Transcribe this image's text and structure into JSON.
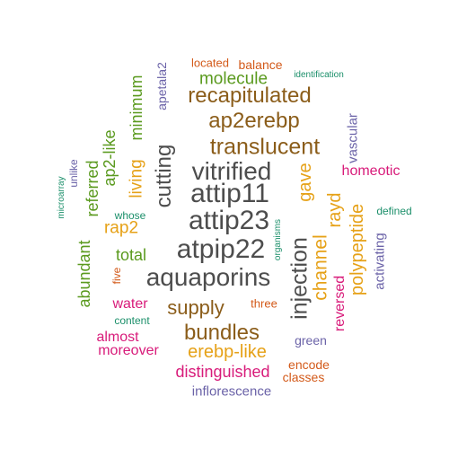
{
  "words": [
    {
      "text": "aquaporins",
      "color": "#4d4d4d"
    },
    {
      "text": "attip23",
      "color": "#4d4d4d"
    },
    {
      "text": "atpip22",
      "color": "#4d4d4d"
    },
    {
      "text": "attip11",
      "color": "#4d4d4d"
    },
    {
      "text": "vitrified",
      "color": "#4d4d4d"
    },
    {
      "text": "translucent",
      "color": "#8b5d1a"
    },
    {
      "text": "injection",
      "color": "#4d4d4d"
    },
    {
      "text": "ap2erebp",
      "color": "#8b5d1a"
    },
    {
      "text": "recapitulated",
      "color": "#8b5d1a"
    },
    {
      "text": "cutting",
      "color": "#4d4d4d"
    },
    {
      "text": "bundles",
      "color": "#8b5d1a"
    },
    {
      "text": "supply",
      "color": "#8b5d1a"
    },
    {
      "text": "channel",
      "color": "#e6a117"
    },
    {
      "text": "gave",
      "color": "#e6a117"
    },
    {
      "text": "polypeptide",
      "color": "#e6a117"
    },
    {
      "text": "rayd",
      "color": "#e6a117"
    },
    {
      "text": "erebp-like",
      "color": "#e6a117"
    },
    {
      "text": "molecule",
      "color": "#5a9a1e"
    },
    {
      "text": "living",
      "color": "#e6a117"
    },
    {
      "text": "rap2",
      "color": "#e6a117"
    },
    {
      "text": "minimum",
      "color": "#5a9a1e"
    },
    {
      "text": "ap2-like",
      "color": "#5a9a1e"
    },
    {
      "text": "total",
      "color": "#5a9a1e"
    },
    {
      "text": "referred",
      "color": "#5a9a1e"
    },
    {
      "text": "abundant",
      "color": "#5a9a1e"
    },
    {
      "text": "distinguished",
      "color": "#d81b7a"
    },
    {
      "text": "homeotic",
      "color": "#d81b7a"
    },
    {
      "text": "reversed",
      "color": "#d81b7a"
    },
    {
      "text": "moreover",
      "color": "#d81b7a"
    },
    {
      "text": "almost",
      "color": "#d81b7a"
    },
    {
      "text": "water",
      "color": "#d81b7a"
    },
    {
      "text": "inflorescence",
      "color": "#6b63a8"
    },
    {
      "text": "activating",
      "color": "#6b63a8"
    },
    {
      "text": "vascular",
      "color": "#6b63a8"
    },
    {
      "text": "apetala2",
      "color": "#6b63a8"
    },
    {
      "text": "green",
      "color": "#6b63a8"
    },
    {
      "text": "unlike",
      "color": "#6b63a8"
    },
    {
      "text": "classes",
      "color": "#d35a1a"
    },
    {
      "text": "encode",
      "color": "#d35a1a"
    },
    {
      "text": "balance",
      "color": "#d35a1a"
    },
    {
      "text": "located",
      "color": "#d35a1a"
    },
    {
      "text": "three",
      "color": "#d35a1a"
    },
    {
      "text": "five",
      "color": "#d35a1a"
    },
    {
      "text": "defined",
      "color": "#1b8f6a"
    },
    {
      "text": "identification",
      "color": "#1b8f6a"
    },
    {
      "text": "whose",
      "color": "#1b8f6a"
    },
    {
      "text": "content",
      "color": "#1b8f6a"
    },
    {
      "text": "microarray",
      "color": "#1b8f6a"
    },
    {
      "text": "organisms",
      "color": "#1b8f6a"
    }
  ]
}
